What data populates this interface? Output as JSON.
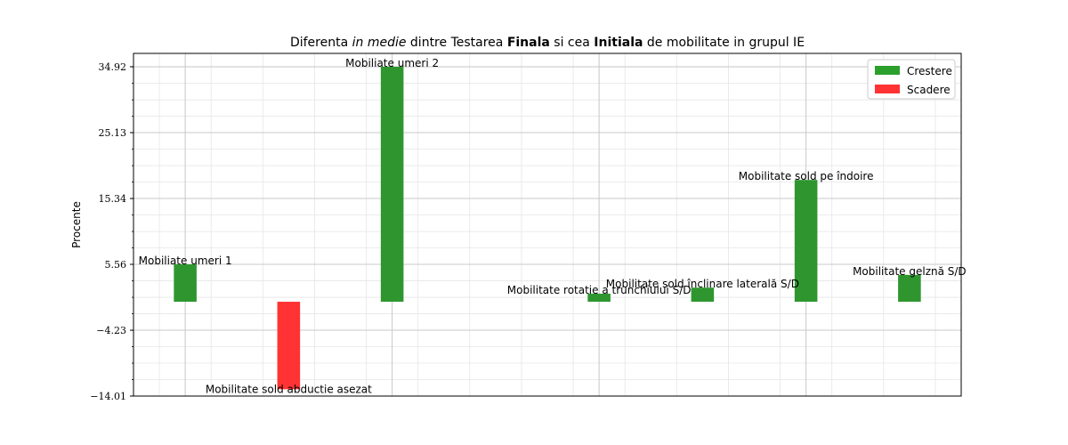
{
  "chart_data": {
    "type": "bar",
    "title_parts": [
      {
        "text": "Diferenta ",
        "style": "normal"
      },
      {
        "text": "in medie",
        "style": "italic"
      },
      {
        "text": " dintre Testarea ",
        "style": "normal"
      },
      {
        "text": "Finala",
        "style": "bold"
      },
      {
        "text": " si cea ",
        "style": "normal"
      },
      {
        "text": "Initiala",
        "style": "bold"
      },
      {
        "text": " de mobilitate in grupul IE",
        "style": "normal"
      }
    ],
    "ylabel": "Procente",
    "ylim": [
      -14.01,
      36.9
    ],
    "yticks": [
      -14.01,
      -4.23,
      5.56,
      15.34,
      25.13,
      34.92
    ],
    "ytick_labels": [
      "−14.01",
      "−4.23",
      "5.56",
      "15.34",
      "25.13",
      "34.92"
    ],
    "bars": [
      {
        "label": "Mobiliate umeri 1",
        "value": 5.56,
        "x": 0
      },
      {
        "label": "Mobilitate sold abductie asezat",
        "value": -13.0,
        "x": 1
      },
      {
        "label": "Mobiliate umeri 2",
        "value": 34.92,
        "x": 2
      },
      {
        "label": "Mobilitate rotatie a trunchiului S/D",
        "value": 1.2,
        "x": 4
      },
      {
        "label": "Mobilitate sold înclinare laterală S/D",
        "value": 2.1,
        "x": 5
      },
      {
        "label": "Mobilitate sold pe îndoire",
        "value": 18.1,
        "x": 6
      },
      {
        "label": "Mobilitate gelznă S/D",
        "value": 4.0,
        "x": 7
      }
    ],
    "legend": {
      "placement": "top-right",
      "entries": [
        {
          "label": "Crestere",
          "color": "#2ca02c"
        },
        {
          "label": "Scadere",
          "color": "#ff3333"
        }
      ]
    },
    "colors": {
      "increase": "#2f962f",
      "decrease": "#ff3333"
    },
    "grid": true
  }
}
